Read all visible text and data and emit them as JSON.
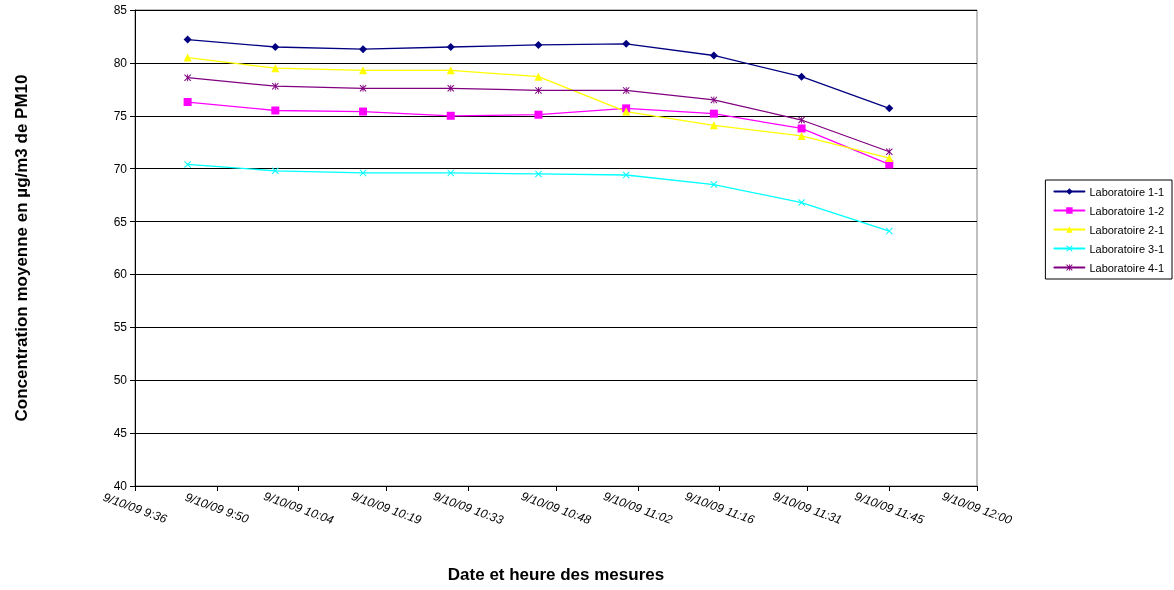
{
  "chart_data": {
    "type": "line",
    "xlabel": "Date et heure des mesures",
    "ylabel": "Concentration moyenne en µg/m3 de PM10",
    "x": [
      "--10-09T09:45",
      "--10-09T10:00",
      "--10-09T10:15",
      "--10-09T10:30",
      "--10-09T10:45",
      "--10-09T11:00",
      "--10-09T11:15",
      "--10-09T11:30",
      "--10-09T11:45"
    ],
    "xlim": [
      "--10-09T09:36",
      "--10-09T12:00"
    ],
    "xticks": [
      {
        "value": "--10-09T09:36",
        "label": "9/10/09 9:36"
      },
      {
        "value": "--10-09T09:50",
        "label": "9/10/09 9:50"
      },
      {
        "value": "--10-09T10:04",
        "label": "9/10/09 10:04"
      },
      {
        "value": "--10-09T10:19",
        "label": "9/10/09 10:19"
      },
      {
        "value": "--10-09T10:33",
        "label": "9/10/09 10:33"
      },
      {
        "value": "--10-09T10:48",
        "label": "9/10/09 10:48"
      },
      {
        "value": "--10-09T11:02",
        "label": "9/10/09 11:02"
      },
      {
        "value": "--10-09T11:16",
        "label": "9/10/09 11:16"
      },
      {
        "value": "--10-09T11:31",
        "label": "9/10/09 11:31"
      },
      {
        "value": "--10-09T11:45",
        "label": "9/10/09 11:45"
      },
      {
        "value": "--10-09T12:00",
        "label": "9/10/09 12:00"
      }
    ],
    "ylim": [
      40,
      85
    ],
    "yticks": [
      40,
      45,
      50,
      55,
      60,
      65,
      70,
      75,
      80,
      85
    ],
    "grid": "y",
    "legend": "right",
    "line_style": "solid",
    "series": [
      {
        "name": "Laboratoire 1-1",
        "color": "#000080",
        "marker": "diamond",
        "values": [
          82.2,
          81.5,
          81.3,
          81.5,
          81.7,
          81.8,
          80.7,
          78.7,
          75.7
        ]
      },
      {
        "name": "Laboratoire 1-2",
        "color": "#ff00ff",
        "marker": "square",
        "values": [
          76.3,
          75.5,
          75.4,
          75.0,
          75.1,
          75.7,
          75.2,
          73.8,
          70.4
        ]
      },
      {
        "name": "Laboratoire 2-1",
        "color": "#ffff00",
        "marker": "triangle",
        "values": [
          80.5,
          79.5,
          79.3,
          79.3,
          78.7,
          75.4,
          74.1,
          73.1,
          71.0
        ]
      },
      {
        "name": "Laboratoire 3-1",
        "color": "#00ffff",
        "marker": "cross",
        "values": [
          70.4,
          69.8,
          69.6,
          69.6,
          69.5,
          69.4,
          68.5,
          66.8,
          64.1
        ]
      },
      {
        "name": "Laboratoire 4-1",
        "color": "#800080",
        "marker": "star",
        "values": [
          78.6,
          77.8,
          77.6,
          77.6,
          77.4,
          77.4,
          76.5,
          74.6,
          71.6
        ]
      }
    ]
  }
}
